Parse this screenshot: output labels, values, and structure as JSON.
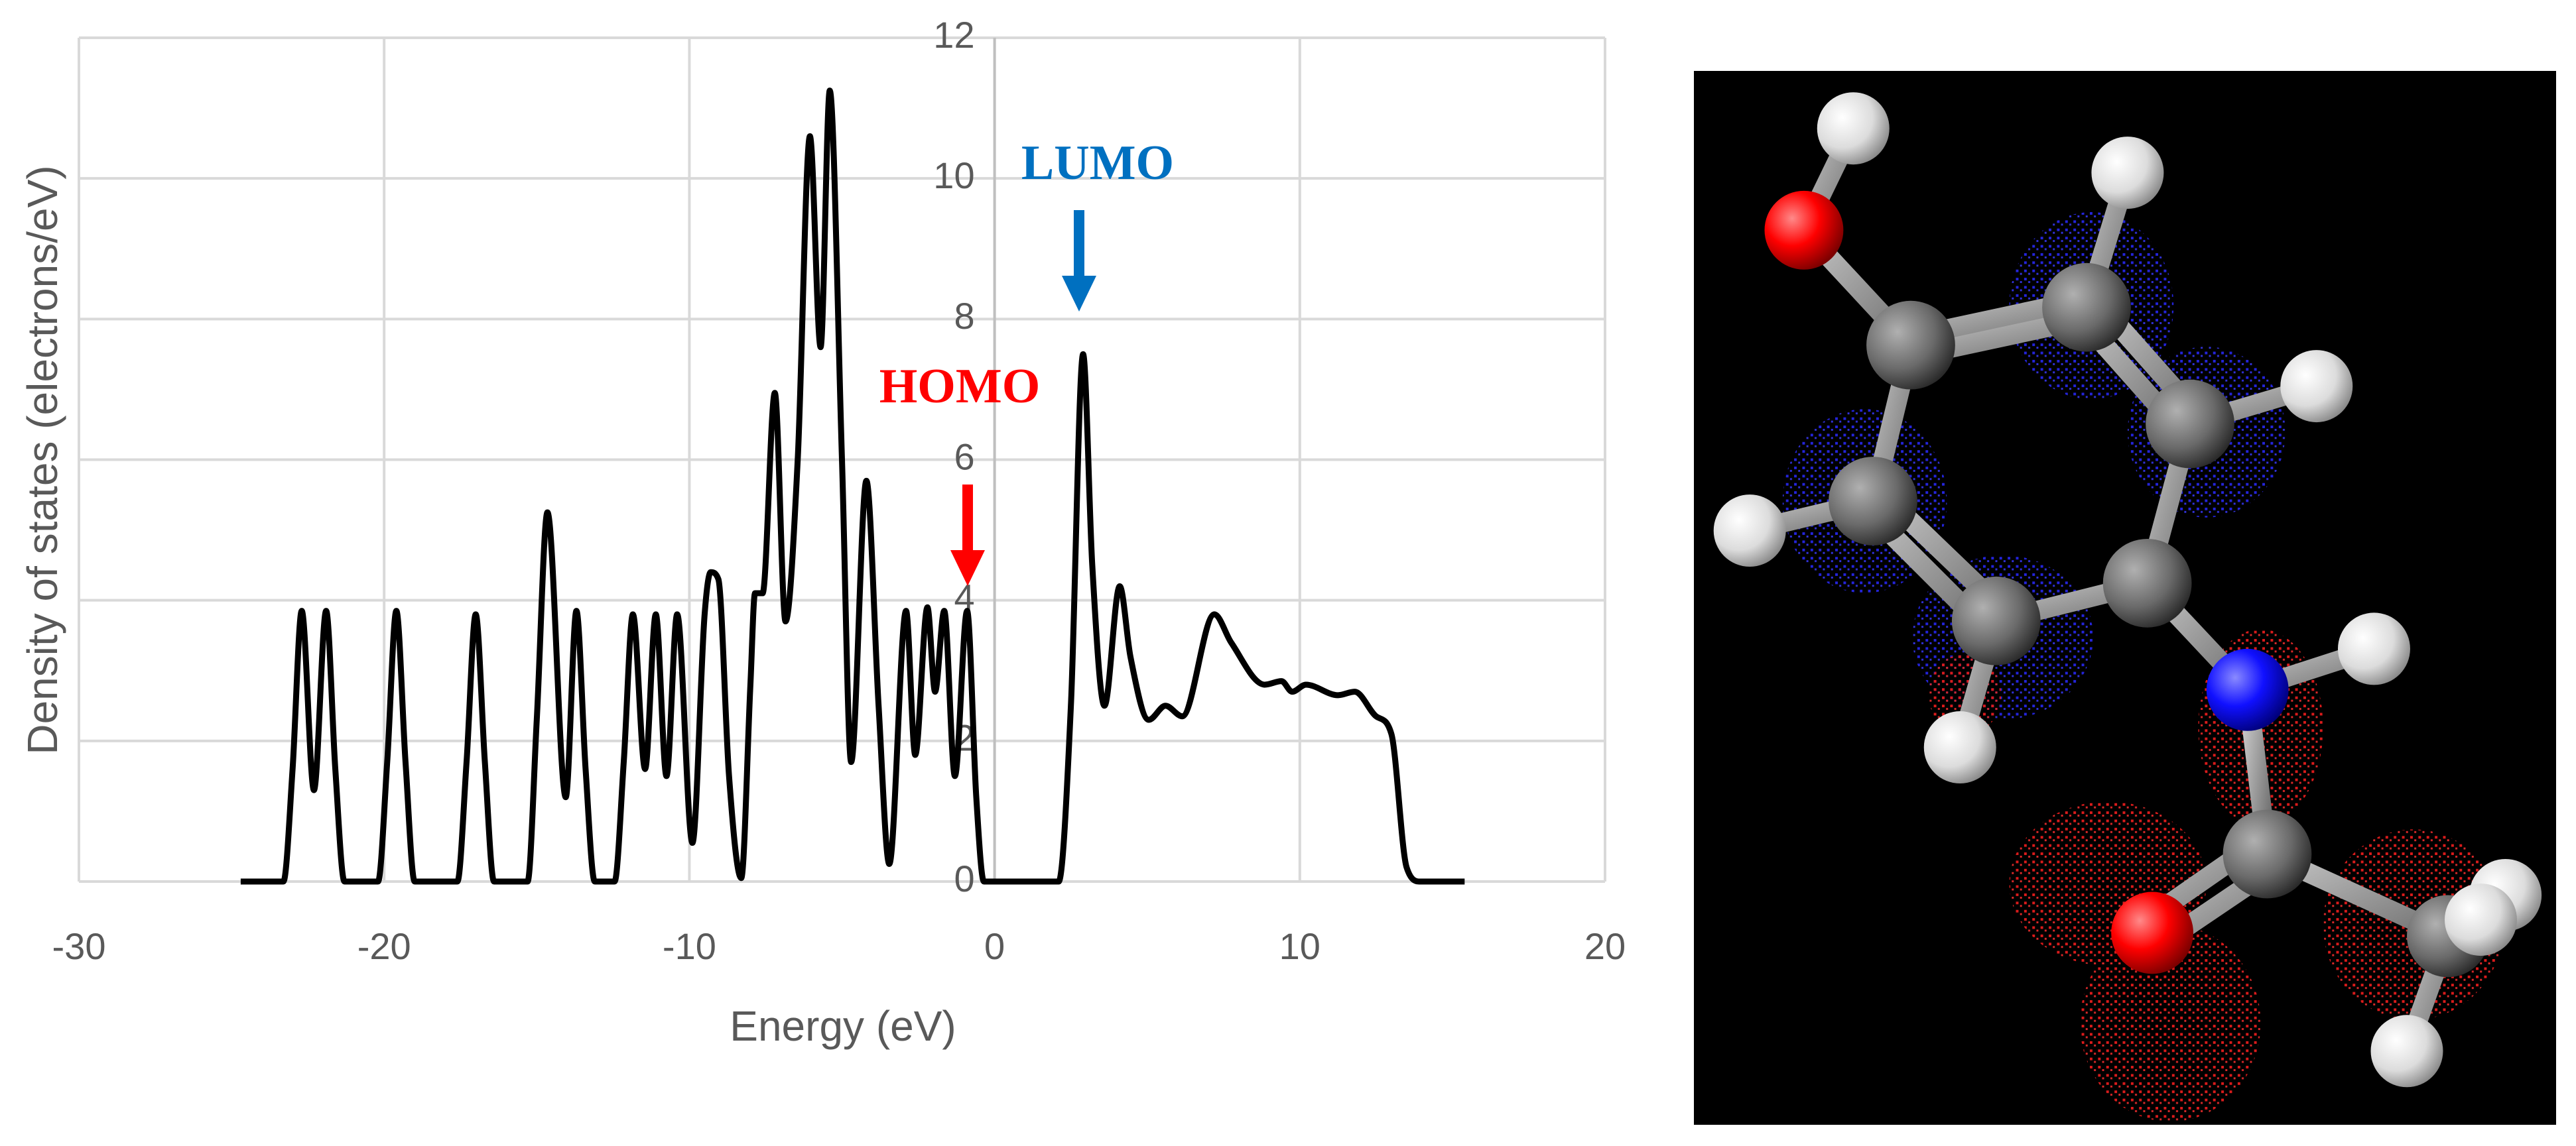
{
  "chart_data": {
    "type": "line",
    "x_label": "Energy (eV)",
    "y_label": "Density of states (electrons/eV)",
    "x": [
      -24.7,
      -23.3,
      -23.0,
      -22.7,
      -22.3,
      -21.9,
      -21.6,
      -21.3,
      -20.2,
      -19.9,
      -19.6,
      -19.3,
      -19.0,
      -17.6,
      -17.3,
      -17.0,
      -16.7,
      -16.4,
      -15.3,
      -15.0,
      -14.65,
      -14.05,
      -13.7,
      -13.4,
      -13.1,
      -12.45,
      -12.15,
      -11.85,
      -11.45,
      -11.1,
      -10.75,
      -10.4,
      -9.9,
      -9.5,
      -9.3,
      -9.05,
      -8.7,
      -8.3,
      -8.0,
      -7.85,
      -7.6,
      -7.2,
      -6.85,
      -6.45,
      -6.05,
      -5.7,
      -5.4,
      -5.0,
      -4.7,
      -4.2,
      -3.8,
      -3.45,
      -2.9,
      -2.6,
      -2.2,
      -1.95,
      -1.65,
      -1.3,
      -0.9,
      -0.6,
      -0.35,
      2.1,
      2.5,
      2.9,
      3.2,
      3.6,
      4.1,
      4.45,
      5.05,
      5.6,
      6.15,
      7.2,
      7.75,
      8.85,
      9.4,
      9.75,
      10.2,
      11.25,
      11.8,
      12.5,
      13.0,
      13.5,
      13.95,
      15.4
    ],
    "values": [
      0,
      0,
      1.6,
      3.85,
      1.3,
      3.85,
      1.6,
      0,
      0,
      1.7,
      3.85,
      1.7,
      0,
      0,
      1.7,
      3.8,
      1.7,
      0,
      0,
      2.3,
      5.25,
      1.2,
      3.85,
      1.6,
      0,
      0,
      1.7,
      3.8,
      1.6,
      3.8,
      1.5,
      3.8,
      0.55,
      3.8,
      4.4,
      4.3,
      1.5,
      0.05,
      2.8,
      4.1,
      4.1,
      6.95,
      3.7,
      6.0,
      10.6,
      7.6,
      11.25,
      6.0,
      1.7,
      5.7,
      2.5,
      0.25,
      3.85,
      1.8,
      3.9,
      2.7,
      3.85,
      1.5,
      3.85,
      1.2,
      0,
      0,
      2.5,
      7.5,
      4.5,
      2.5,
      4.2,
      3.2,
      2.3,
      2.5,
      2.35,
      3.8,
      3.4,
      2.8,
      2.85,
      2.7,
      2.8,
      2.65,
      2.7,
      2.35,
      2.1,
      0.2,
      0,
      0
    ],
    "color": "#000000",
    "xlim": [
      -30,
      20
    ],
    "xticks": [
      -30,
      -20,
      -10,
      0,
      10,
      20
    ],
    "ylim": [
      0,
      12
    ],
    "yticks": [
      0,
      2,
      4,
      6,
      8,
      10,
      12
    ],
    "grid": true,
    "annotations": [
      {
        "text": "HOMO",
        "color": "#ff0000"
      },
      {
        "text": "LUMO",
        "color": "#0070c0"
      }
    ]
  }
}
